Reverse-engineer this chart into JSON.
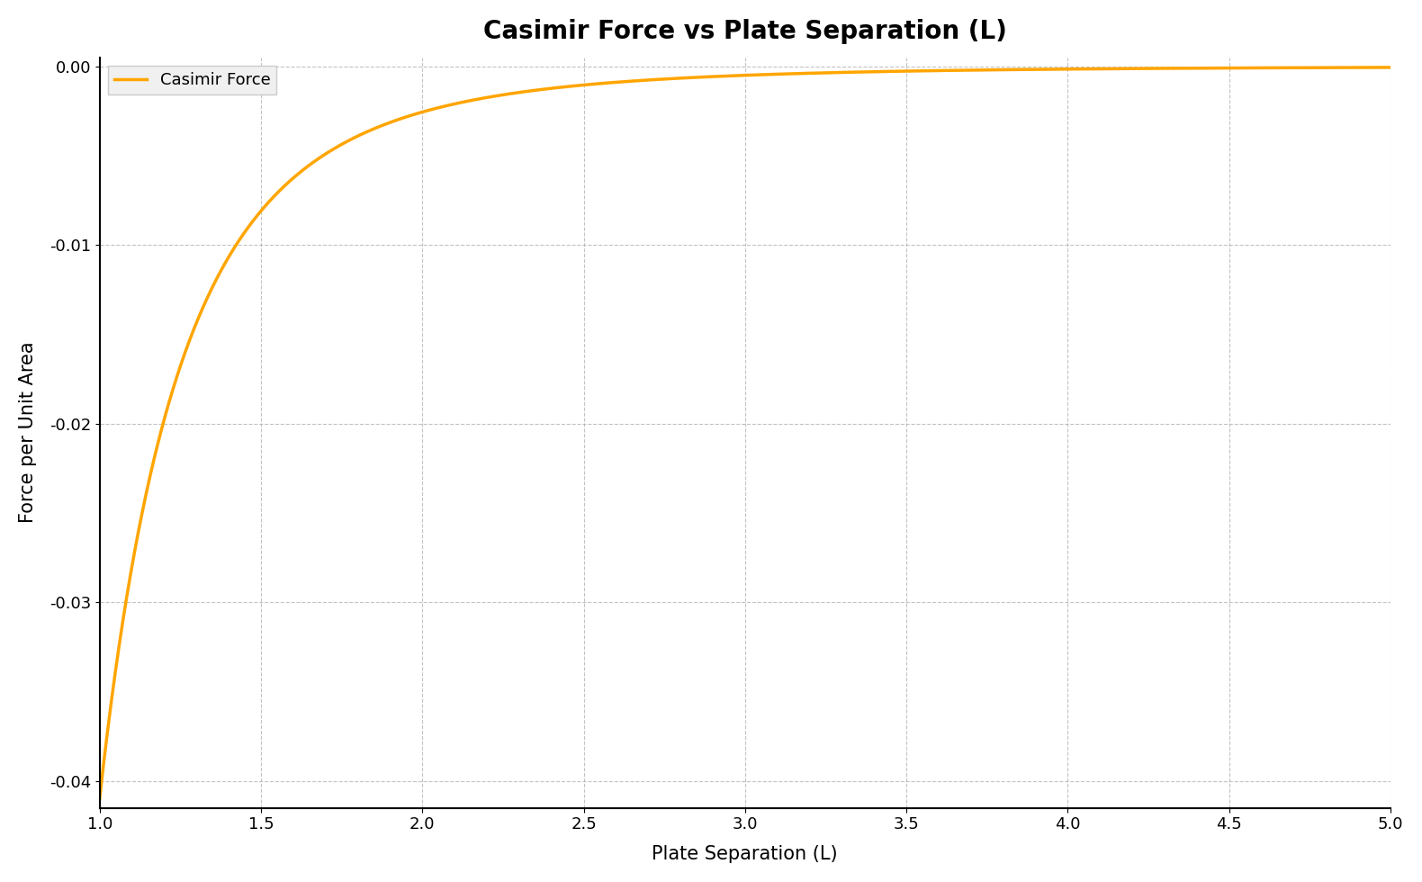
{
  "title": "Casimir Force vs Plate Separation (L)",
  "xlabel": "Plate Separation (L)",
  "ylabel": "Force per Unit Area",
  "line_color": "#FFA500",
  "line_label": "Casimir Force",
  "line_width": 2.5,
  "x_min": 1.0,
  "x_max": 5.0,
  "y_min": -0.0415,
  "y_max": 0.0005,
  "casimir_constant": 0.041,
  "background_color": "#ffffff",
  "grid_color": "#aaaaaa",
  "grid_style": "--",
  "title_fontsize": 20,
  "label_fontsize": 15,
  "tick_fontsize": 13,
  "legend_fontsize": 13,
  "yticks": [
    0.0,
    -0.01,
    -0.02,
    -0.03,
    -0.04
  ],
  "xticks": [
    1.0,
    1.5,
    2.0,
    2.5,
    3.0,
    3.5,
    4.0,
    4.5,
    5.0
  ]
}
